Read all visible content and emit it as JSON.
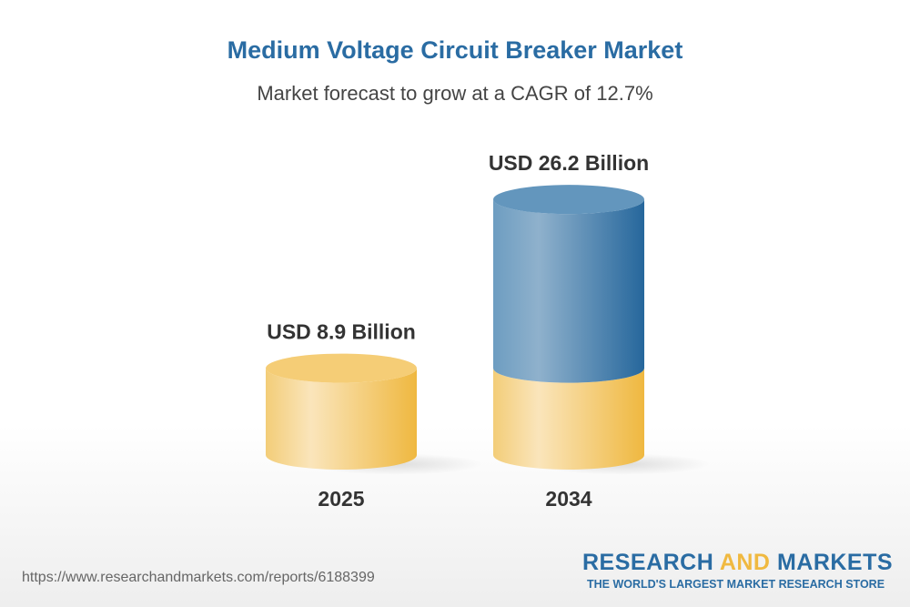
{
  "header": {
    "title": "Medium Voltage Circuit Breaker Market",
    "subtitle": "Market forecast to grow at a CAGR of 12.7%"
  },
  "chart_data": {
    "type": "bar",
    "style": "3d-cylinder",
    "categories": [
      "2025",
      "2034"
    ],
    "values": [
      8.9,
      26.2
    ],
    "data_labels": [
      "USD 8.9 Billion",
      "USD 26.2 Billion"
    ],
    "unit": "USD Billion",
    "colors": {
      "base": "#f2c35a",
      "growth": "#2a6ca3"
    },
    "grid": false
  },
  "footer": {
    "url": "https://www.researchandmarkets.com/reports/6188399",
    "logo": {
      "part1": "RESEARCH ",
      "part2": "AND",
      "part3": " MARKETS",
      "tagline": "THE WORLD'S LARGEST MARKET RESEARCH STORE"
    }
  }
}
